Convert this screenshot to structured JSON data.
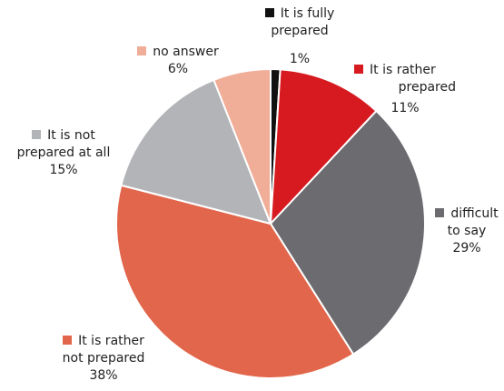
{
  "chart_data": {
    "type": "pie",
    "title": "",
    "legend_placement": "labels beside slices",
    "slices": [
      {
        "label_lines": [
          "It is fully",
          "prepared"
        ],
        "value": 1,
        "pct": "1%",
        "color": "#111111"
      },
      {
        "label_lines": [
          "It is rather",
          "prepared"
        ],
        "value": 11,
        "pct": "11%",
        "color": "#d71920"
      },
      {
        "label_lines": [
          "difficult",
          "to say"
        ],
        "value": 29,
        "pct": "29%",
        "color": "#6b6b70"
      },
      {
        "label_lines": [
          "It is rather",
          "not prepared"
        ],
        "value": 38,
        "pct": "38%",
        "color": "#e2664b"
      },
      {
        "label_lines": [
          "It is not",
          "prepared at all"
        ],
        "value": 15,
        "pct": "15%",
        "color": "#b3b4b7"
      },
      {
        "label_lines": [
          "no answer"
        ],
        "value": 6,
        "pct": "6%",
        "color": "#f0ad97"
      }
    ]
  }
}
